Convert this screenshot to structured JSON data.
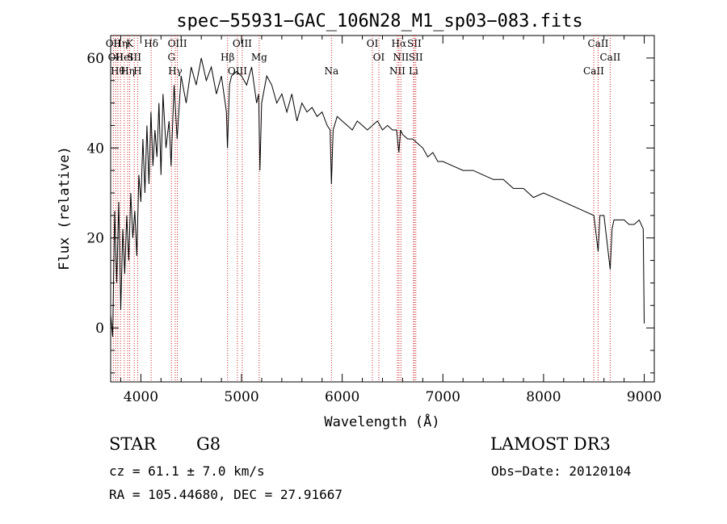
{
  "chart_data": {
    "type": "line",
    "title": "spec−55931−GAC_106N28_M1_sp03−083.fits",
    "xlabel": "Wavelength (Å)",
    "ylabel": "Flux (relative)",
    "xlim": [
      3700,
      9100
    ],
    "ylim": [
      -12,
      65
    ],
    "xticks": [
      4000,
      5000,
      6000,
      7000,
      8000,
      9000
    ],
    "yticks": [
      0,
      20,
      40,
      60
    ],
    "grid": false,
    "series": [
      {
        "name": "spectrum",
        "x": [
          3700,
          3720,
          3740,
          3760,
          3780,
          3800,
          3820,
          3840,
          3860,
          3880,
          3900,
          3920,
          3940,
          3960,
          3980,
          4000,
          4020,
          4040,
          4060,
          4080,
          4100,
          4120,
          4140,
          4160,
          4180,
          4200,
          4220,
          4250,
          4280,
          4300,
          4330,
          4360,
          4400,
          4450,
          4500,
          4550,
          4600,
          4650,
          4700,
          4750,
          4800,
          4850,
          4860,
          4880,
          4900,
          4950,
          5000,
          5050,
          5100,
          5150,
          5170,
          5183,
          5200,
          5250,
          5300,
          5350,
          5400,
          5450,
          5500,
          5550,
          5600,
          5650,
          5700,
          5750,
          5800,
          5850,
          5880,
          5893,
          5910,
          5950,
          6000,
          6050,
          6100,
          6150,
          6200,
          6250,
          6300,
          6350,
          6400,
          6450,
          6500,
          6540,
          6563,
          6580,
          6600,
          6650,
          6700,
          6750,
          6800,
          6850,
          6900,
          6950,
          7000,
          7100,
          7200,
          7300,
          7400,
          7500,
          7600,
          7700,
          7800,
          7900,
          8000,
          8100,
          8200,
          8300,
          8400,
          8500,
          8542,
          8560,
          8600,
          8662,
          8680,
          8700,
          8750,
          8800,
          8850,
          8900,
          8950,
          8990,
          9000
        ],
        "values": [
          3,
          -2,
          26,
          10,
          28,
          4,
          22,
          12,
          25,
          15,
          30,
          20,
          26,
          16,
          34,
          28,
          42,
          30,
          45,
          32,
          48,
          36,
          44,
          38,
          50,
          34,
          52,
          40,
          46,
          36,
          54,
          42,
          56,
          50,
          58,
          54,
          60,
          55,
          58,
          52,
          56,
          48,
          40,
          54,
          56,
          57,
          56,
          54,
          58,
          50,
          52,
          35,
          50,
          56,
          54,
          50,
          52,
          48,
          52,
          46,
          50,
          48,
          49,
          47,
          48,
          45,
          44,
          32,
          44,
          47,
          46,
          45,
          44,
          46,
          45,
          44,
          45,
          46,
          44,
          45,
          44,
          44,
          39,
          44,
          43,
          42,
          42,
          41,
          40,
          38,
          39,
          37,
          37,
          36,
          35,
          35,
          34,
          33,
          33,
          31,
          31,
          29,
          30,
          29,
          28,
          27,
          26,
          25,
          17,
          25,
          25,
          13,
          22,
          24,
          24,
          24,
          23,
          23,
          24,
          22,
          1
        ],
        "color": "#000000"
      }
    ],
    "line_marks": {
      "color": "#cc2222",
      "lines": [
        {
          "wavelength": 3727,
          "label": "OII"
        },
        {
          "wavelength": 3750,
          "label": "OII"
        },
        {
          "wavelength": 3771,
          "label": "Hθ"
        },
        {
          "wavelength": 3798,
          "label": "Hη"
        },
        {
          "wavelength": 3835,
          "label": "HeI"
        },
        {
          "wavelength": 3869,
          "label": "Hη"
        },
        {
          "wavelength": 3889,
          "label": "K"
        },
        {
          "wavelength": 3934,
          "label": "SII"
        },
        {
          "wavelength": 3968,
          "label": "H"
        },
        {
          "wavelength": 4102,
          "label": "Hδ"
        },
        {
          "wavelength": 4304,
          "label": "G"
        },
        {
          "wavelength": 4341,
          "label": "Hγ"
        },
        {
          "wavelength": 4363,
          "label": "OIII"
        },
        {
          "wavelength": 4861,
          "label": "Hβ"
        },
        {
          "wavelength": 4959,
          "label": "OIII"
        },
        {
          "wavelength": 5007,
          "label": "OIII"
        },
        {
          "wavelength": 5175,
          "label": "Mg"
        },
        {
          "wavelength": 5893,
          "label": "Na"
        },
        {
          "wavelength": 6300,
          "label": "OI"
        },
        {
          "wavelength": 6364,
          "label": "OI"
        },
        {
          "wavelength": 6548,
          "label": "NII"
        },
        {
          "wavelength": 6563,
          "label": "Hα"
        },
        {
          "wavelength": 6583,
          "label": "NII"
        },
        {
          "wavelength": 6708,
          "label": "Li"
        },
        {
          "wavelength": 6716,
          "label": "SII"
        },
        {
          "wavelength": 6731,
          "label": "SII"
        },
        {
          "wavelength": 8498,
          "label": "CaII"
        },
        {
          "wavelength": 8542,
          "label": "CaII"
        },
        {
          "wavelength": 8662,
          "label": "CaII"
        }
      ]
    }
  },
  "info": {
    "class_label": "STAR",
    "subclass_label": "G8",
    "survey_label": "LAMOST DR3",
    "cz_text": "cz = 61.1 ± 7.0 km/s",
    "obs_date_text": "Obs−Date: 20120104",
    "radec_text": "RA = 105.44680, DEC =  27.91667"
  }
}
